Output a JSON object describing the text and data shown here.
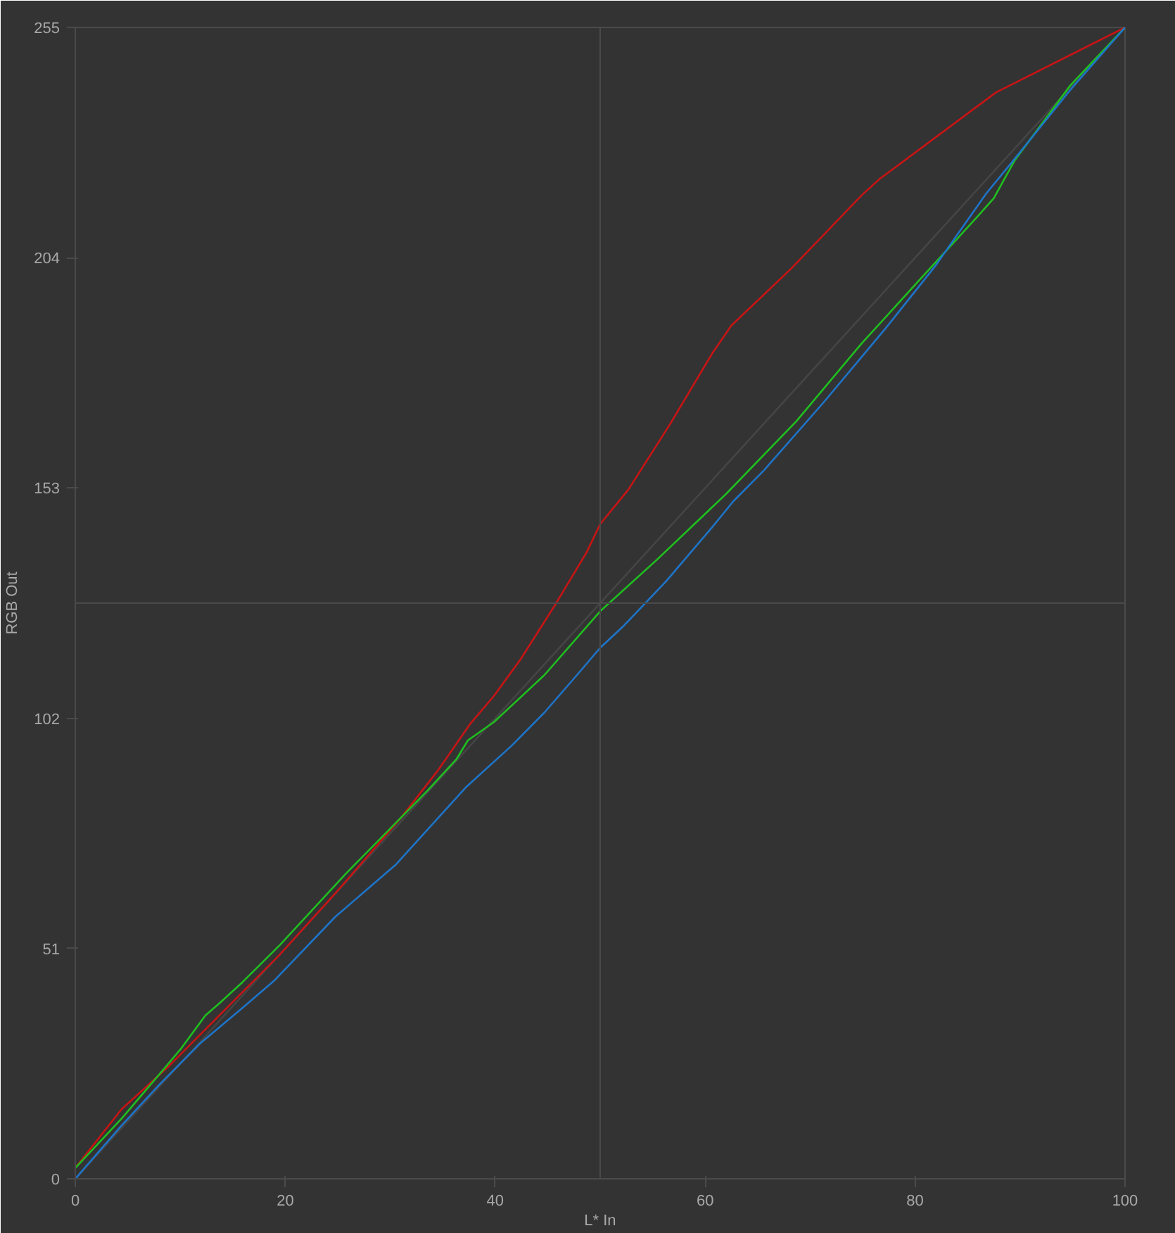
{
  "chart_data": {
    "type": "line",
    "xlabel": "L* In",
    "ylabel": "RGB Out",
    "xlim": [
      0,
      100
    ],
    "ylim": [
      0,
      255
    ],
    "xticks": [
      0,
      20,
      40,
      60,
      80,
      100
    ],
    "yticks": [
      0,
      51,
      102,
      153,
      204,
      255
    ],
    "ref_lines": [
      {
        "axis": "x",
        "value": 50,
        "color": "#4a4a4a"
      },
      {
        "axis": "y",
        "value": 127.5,
        "color": "#4a4a4a"
      }
    ],
    "series": [
      {
        "color": "#454545",
        "x": [
          0,
          100
        ],
        "values": [
          0,
          255
        ]
      },
      {
        "color": "#c81414",
        "x": [
          0,
          4.4,
          8.8,
          12.4,
          19.5,
          24.8,
          31,
          34.5,
          37.6,
          39.9,
          42.4,
          45.6,
          48.7,
          50,
          52.7,
          56.7,
          60.7,
          62.5,
          68.2,
          74.9,
          76.6,
          87.7,
          100
        ],
        "values": [
          2.4,
          15.4,
          24.7,
          33.1,
          49.7,
          63.3,
          79.9,
          90.3,
          100.7,
          107,
          115,
          126.7,
          138.7,
          145,
          152.7,
          167.3,
          182.9,
          189,
          201.6,
          217.8,
          221.4,
          240.6,
          255
        ]
      },
      {
        "color": "#1fbf1f",
        "x": [
          0,
          4.4,
          8.8,
          10.1,
          12.4,
          13.7,
          15.9,
          19.5,
          25.7,
          30.1,
          33.6,
          36.3,
          37.4,
          39.9,
          44.7,
          50,
          55.4,
          62,
          68.7,
          74.9,
          80.2,
          85.9,
          87.5,
          89.5,
          94.8,
          100
        ],
        "values": [
          2.4,
          13.3,
          25.3,
          28.9,
          36.2,
          38.8,
          43.5,
          51.8,
          67.4,
          77.8,
          86.1,
          92.9,
          97.1,
          101.2,
          111.6,
          125.7,
          137.1,
          151.7,
          167.8,
          185,
          198.5,
          213,
          217.2,
          225.6,
          242.2,
          255
        ]
      },
      {
        "color": "#1e74c8",
        "x": [
          0,
          4.4,
          7.9,
          11.9,
          15.9,
          19,
          24.8,
          30.5,
          37.2,
          41.6,
          44.7,
          47.8,
          50,
          52.3,
          56.3,
          60.7,
          62.7,
          65.6,
          71.3,
          77.1,
          81.9,
          86.8,
          89,
          94.8,
          100
        ],
        "values": [
          0,
          11.8,
          20.6,
          30,
          37.8,
          44,
          58.1,
          69.5,
          86.7,
          96,
          103.3,
          111.6,
          117.6,
          122.6,
          132.4,
          144.4,
          150.1,
          156.9,
          172,
          188.1,
          202.1,
          218.3,
          224.5,
          241.2,
          255
        ]
      }
    ]
  }
}
